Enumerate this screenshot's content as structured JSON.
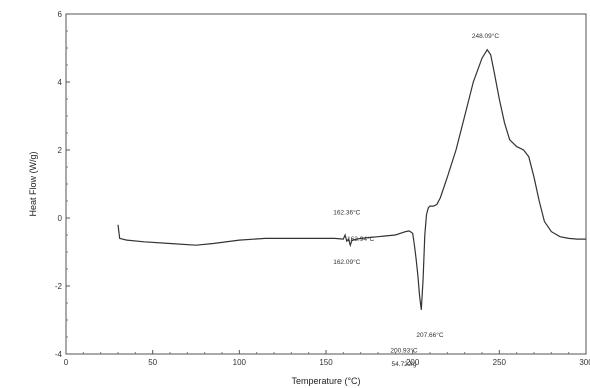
{
  "chart_data": {
    "type": "line",
    "title": "",
    "xlabel": "Temperature (°C)",
    "ylabel": "Heat Flow (W/g)",
    "xlim": [
      0,
      300
    ],
    "ylim": [
      -4,
      6
    ],
    "x_ticks": [
      0,
      50,
      100,
      150,
      200,
      250,
      300
    ],
    "x_tick_labels": [
      "0",
      "50",
      "100",
      "150",
      "200",
      "250",
      "300"
    ],
    "y_ticks": [
      -4,
      -2,
      0,
      2,
      4,
      6
    ],
    "y_tick_labels": [
      "-4",
      "-2",
      "0",
      "2",
      "4",
      "6"
    ],
    "grid": false,
    "series": [
      {
        "name": "",
        "color": "#333333",
        "x": [
          30,
          31,
          35,
          45,
          60,
          75,
          85,
          100,
          115,
          130,
          145,
          155,
          160,
          161,
          162,
          163,
          164,
          165,
          170,
          180,
          190,
          196,
          198,
          200,
          201,
          202,
          203,
          204,
          205,
          206,
          207,
          208,
          209,
          210,
          212,
          214,
          216,
          220,
          225,
          230,
          235,
          240,
          243,
          245,
          247,
          250,
          253,
          256,
          260,
          264,
          267,
          270,
          273,
          276,
          280,
          285,
          290,
          295,
          300
        ],
        "y": [
          -0.2,
          -0.6,
          -0.65,
          -0.7,
          -0.75,
          -0.8,
          -0.75,
          -0.65,
          -0.6,
          -0.6,
          -0.6,
          -0.6,
          -0.62,
          -0.5,
          -0.68,
          -0.62,
          -0.8,
          -0.65,
          -0.6,
          -0.55,
          -0.5,
          -0.4,
          -0.38,
          -0.45,
          -0.8,
          -1.2,
          -1.7,
          -2.3,
          -2.7,
          -1.8,
          -0.5,
          0.1,
          0.3,
          0.35,
          0.35,
          0.4,
          0.6,
          1.2,
          2.0,
          3.0,
          4.0,
          4.7,
          4.95,
          4.8,
          4.3,
          3.5,
          2.8,
          2.3,
          2.1,
          2.0,
          1.8,
          1.2,
          0.5,
          -0.1,
          -0.4,
          -0.55,
          -0.6,
          -0.62,
          -0.62
        ]
      }
    ],
    "annotations": [
      {
        "text": "162.36°C",
        "x": 162,
        "y": 0.1
      },
      {
        "text": "163.94°C",
        "x": 170,
        "y": -0.68
      },
      {
        "text": "162.09°C",
        "x": 162,
        "y": -1.35
      },
      {
        "text": "248.09°C",
        "x": 242,
        "y": 5.3
      },
      {
        "text": "207.66°C",
        "x": 210,
        "y": -3.5
      },
      {
        "text": "200.93°C",
        "x": 195,
        "y": -3.95
      },
      {
        "text": "54.72J/g",
        "x": 195,
        "y": -4.35
      }
    ]
  }
}
